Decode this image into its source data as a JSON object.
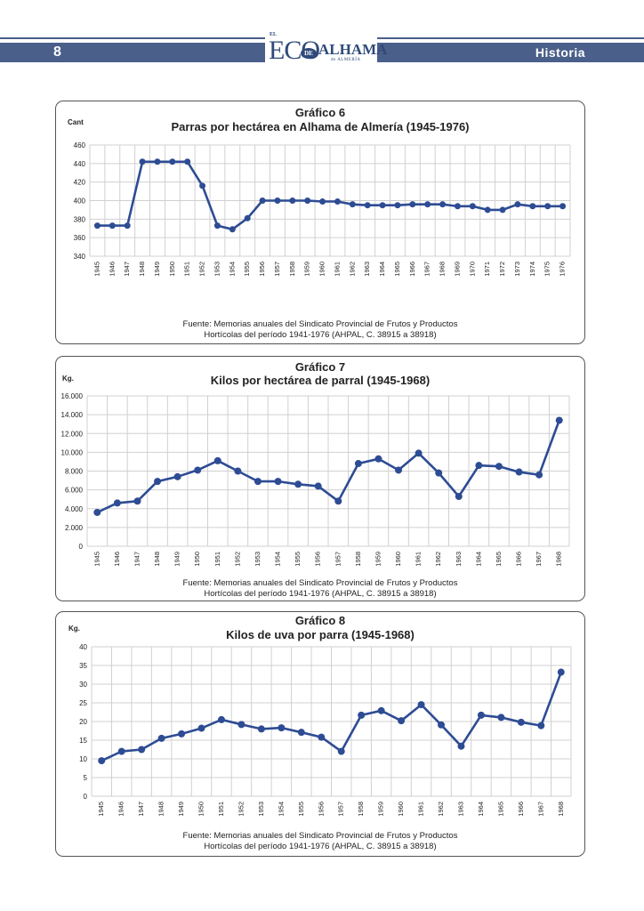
{
  "header": {
    "page_number": "8",
    "section": "Historia",
    "logo": {
      "el": "EL",
      "eco": "ECO",
      "de": "DE",
      "alhama": "ALHAMA",
      "almeria": "de ALMERÍA"
    }
  },
  "colors": {
    "header": "#4a5f8a",
    "series": "#2e4c94",
    "grid": "#d0d0d0"
  },
  "chart_data": [
    {
      "type": "line",
      "title": "Gráfico 6",
      "subtitle": "Parras por hectárea en Alhama de Almería (1945-1976)",
      "ylabel": "Cant",
      "xlabel": "",
      "ylim": [
        340,
        460
      ],
      "yticks": [
        340,
        360,
        380,
        400,
        420,
        440,
        460
      ],
      "ytick_labels": [
        "340",
        "360",
        "380",
        "400",
        "420",
        "440",
        "460"
      ],
      "grid": true,
      "x": [
        "1945",
        "1946",
        "1947",
        "1948",
        "1949",
        "1950",
        "1951",
        "1952",
        "1953",
        "1954",
        "1955",
        "1956",
        "1957",
        "1958",
        "1959",
        "1960",
        "1961",
        "1962",
        "1963",
        "1964",
        "1965",
        "1966",
        "1967",
        "1968",
        "1969",
        "1970",
        "1971",
        "1972",
        "1973",
        "1974",
        "1975",
        "1976"
      ],
      "values": [
        373,
        373,
        373,
        442,
        442,
        442,
        442,
        416,
        373,
        369,
        381,
        400,
        400,
        400,
        400,
        399,
        399,
        396,
        395,
        395,
        395,
        396,
        396,
        396,
        394,
        394,
        390,
        390,
        396,
        394,
        394,
        394
      ],
      "source": [
        "Fuente: Memorias anuales del Sindicato Provincial de Frutos y Productos",
        "Hortícolas del período 1941-1976 (AHPAL, C. 38915 a 38918)"
      ]
    },
    {
      "type": "line",
      "title": "Gráfico 7",
      "subtitle": "Kilos por hectárea de parral (1945-1968)",
      "ylabel": "Kg.",
      "xlabel": "",
      "ylim": [
        0,
        16000
      ],
      "yticks": [
        0,
        2000,
        4000,
        6000,
        8000,
        10000,
        12000,
        14000,
        16000
      ],
      "ytick_labels": [
        "0",
        "2.000",
        "4.000",
        "6.000",
        "8.000",
        "10.000",
        "12.000",
        "14.000",
        "16.000"
      ],
      "grid": true,
      "x": [
        "1945",
        "1946",
        "1947",
        "1948",
        "1949",
        "1950",
        "1951",
        "1952",
        "1953",
        "1954",
        "1955",
        "1956",
        "1957",
        "1958",
        "1959",
        "1960",
        "1961",
        "1962",
        "1963",
        "1964",
        "1965",
        "1966",
        "1967",
        "1968"
      ],
      "values": [
        3600,
        4600,
        4800,
        6900,
        7400,
        8100,
        9100,
        8000,
        6900,
        6900,
        6600,
        6400,
        4800,
        8800,
        9300,
        8100,
        9900,
        7800,
        5300,
        8600,
        8500,
        7900,
        7600,
        13400
      ],
      "source": [
        "Fuente: Memorias anuales del Sindicato Provincial de Frutos y Productos",
        "Hortícolas del período 1941-1976 (AHPAL, C. 38915 a 38918)"
      ]
    },
    {
      "type": "line",
      "title": "Gráfico 8",
      "subtitle": "Kilos de uva por parra (1945-1968)",
      "ylabel": "Kg.",
      "xlabel": "",
      "ylim": [
        0,
        40
      ],
      "yticks": [
        0,
        5,
        10,
        15,
        20,
        25,
        30,
        35,
        40
      ],
      "ytick_labels": [
        "0",
        "5",
        "10",
        "15",
        "20",
        "25",
        "30",
        "35",
        "40"
      ],
      "grid": true,
      "x": [
        "1945",
        "1946",
        "1947",
        "1948",
        "1949",
        "1950",
        "1951",
        "1952",
        "1953",
        "1954",
        "1955",
        "1956",
        "1957",
        "1958",
        "1959",
        "1960",
        "1961",
        "1962",
        "1963",
        "1964",
        "1965",
        "1966",
        "1967",
        "1968"
      ],
      "values": [
        9.5,
        12,
        12.5,
        15.5,
        16.7,
        18.2,
        20.5,
        19.2,
        18,
        18.3,
        17.1,
        15.8,
        12,
        21.7,
        22.9,
        20.2,
        24.5,
        19.1,
        13.4,
        21.7,
        21.1,
        19.8,
        18.9,
        33.2
      ],
      "source": [
        "Fuente: Memorias anuales del Sindicato Provincial de Frutos y Productos",
        "Hortícolas del período 1941-1976 (AHPAL, C. 38915 a 38918)"
      ]
    }
  ]
}
